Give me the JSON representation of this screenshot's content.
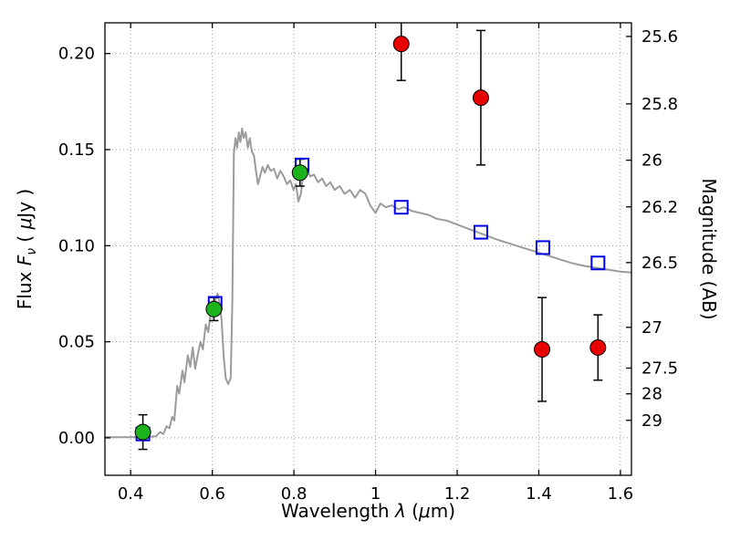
{
  "chart_data": {
    "type": "line",
    "title": "",
    "xlabel": "Wavelength  λ (μm)",
    "xlabel_parts": [
      {
        "t": "Wavelength  "
      },
      {
        "t": "λ",
        "i": true
      },
      {
        "t": " ("
      },
      {
        "t": "μ",
        "i": true
      },
      {
        "t": "m)"
      }
    ],
    "ylabel_left": "Flux  Fν ( μJy )",
    "ylabel_left_parts": [
      {
        "t": "Flux  "
      },
      {
        "t": "F",
        "i": true
      },
      {
        "t": "ν",
        "i": true,
        "sub": true
      },
      {
        "t": " ( "
      },
      {
        "t": "μ",
        "i": true
      },
      {
        "t": "Jy )"
      }
    ],
    "ylabel_right": "Magnitude (AB)",
    "xlim": [
      0.337,
      1.627
    ],
    "ylim": [
      -0.0195,
      0.216
    ],
    "grid": true,
    "x_ticks": [
      {
        "v": 0.4,
        "label": "0.4"
      },
      {
        "v": 0.6,
        "label": "0.6"
      },
      {
        "v": 0.8,
        "label": "0.8"
      },
      {
        "v": 1.0,
        "label": "1"
      },
      {
        "v": 1.2,
        "label": "1.2"
      },
      {
        "v": 1.4,
        "label": "1.4"
      },
      {
        "v": 1.6,
        "label": "1.6"
      }
    ],
    "y_ticks_left": [
      {
        "v": 0.0,
        "label": "0.00"
      },
      {
        "v": 0.05,
        "label": "0.05"
      },
      {
        "v": 0.1,
        "label": "0.10"
      },
      {
        "v": 0.15,
        "label": "0.15"
      },
      {
        "v": 0.2,
        "label": "0.20"
      }
    ],
    "y_ticks_right": [
      {
        "flux": 0.2089,
        "label": "25.6"
      },
      {
        "flux": 0.1738,
        "label": "25.8"
      },
      {
        "flux": 0.1445,
        "label": "26"
      },
      {
        "flux": 0.1202,
        "label": "26.2"
      },
      {
        "flux": 0.0912,
        "label": "26.5"
      },
      {
        "flux": 0.0575,
        "label": "27"
      },
      {
        "flux": 0.0363,
        "label": "27.5"
      },
      {
        "flux": 0.0229,
        "label": "28"
      },
      {
        "flux": 0.0091,
        "label": "29"
      }
    ],
    "colors": {
      "spectrum": "#9b9b9b",
      "model_square": "#0000e6",
      "observed_optical": "#1cb21c",
      "observed_ir": "#e60000",
      "errorbar": "#000000",
      "grid": "#999999",
      "frame": "#000000"
    },
    "series": [
      {
        "name": "model-spectrum",
        "kind": "line",
        "color_key": "spectrum",
        "points": [
          [
            0.337,
            0.0003
          ],
          [
            0.4,
            0.0003
          ],
          [
            0.44,
            0.0005
          ],
          [
            0.462,
            0.0008
          ],
          [
            0.472,
            0.003
          ],
          [
            0.48,
            0.002
          ],
          [
            0.488,
            0.006
          ],
          [
            0.495,
            0.005
          ],
          [
            0.502,
            0.011
          ],
          [
            0.507,
            0.009
          ],
          [
            0.514,
            0.027
          ],
          [
            0.519,
            0.023
          ],
          [
            0.527,
            0.035
          ],
          [
            0.532,
            0.029
          ],
          [
            0.54,
            0.043
          ],
          [
            0.546,
            0.037
          ],
          [
            0.552,
            0.047
          ],
          [
            0.558,
            0.036
          ],
          [
            0.565,
            0.044
          ],
          [
            0.571,
            0.05
          ],
          [
            0.577,
            0.046
          ],
          [
            0.584,
            0.059
          ],
          [
            0.59,
            0.055
          ],
          [
            0.597,
            0.067
          ],
          [
            0.602,
            0.063
          ],
          [
            0.608,
            0.072
          ],
          [
            0.613,
            0.075
          ],
          [
            0.618,
            0.07
          ],
          [
            0.623,
            0.061
          ],
          [
            0.628,
            0.042
          ],
          [
            0.633,
            0.031
          ],
          [
            0.639,
            0.028
          ],
          [
            0.645,
            0.031
          ],
          [
            0.649,
            0.07
          ],
          [
            0.653,
            0.148
          ],
          [
            0.657,
            0.156
          ],
          [
            0.661,
            0.151
          ],
          [
            0.665,
            0.159
          ],
          [
            0.669,
            0.154
          ],
          [
            0.673,
            0.161
          ],
          [
            0.677,
            0.156
          ],
          [
            0.682,
            0.159
          ],
          [
            0.687,
            0.151
          ],
          [
            0.692,
            0.156
          ],
          [
            0.697,
            0.149
          ],
          [
            0.702,
            0.147
          ],
          [
            0.707,
            0.139
          ],
          [
            0.712,
            0.132
          ],
          [
            0.717,
            0.136
          ],
          [
            0.723,
            0.141
          ],
          [
            0.729,
            0.138
          ],
          [
            0.736,
            0.142
          ],
          [
            0.743,
            0.139
          ],
          [
            0.751,
            0.14
          ],
          [
            0.759,
            0.135
          ],
          [
            0.767,
            0.139
          ],
          [
            0.775,
            0.136
          ],
          [
            0.783,
            0.132
          ],
          [
            0.791,
            0.134
          ],
          [
            0.799,
            0.129
          ],
          [
            0.805,
            0.132
          ],
          [
            0.811,
            0.123
          ],
          [
            0.817,
            0.127
          ],
          [
            0.824,
            0.139
          ],
          [
            0.832,
            0.14
          ],
          [
            0.84,
            0.136
          ],
          [
            0.849,
            0.137
          ],
          [
            0.859,
            0.133
          ],
          [
            0.869,
            0.135
          ],
          [
            0.879,
            0.131
          ],
          [
            0.889,
            0.133
          ],
          [
            0.9,
            0.129
          ],
          [
            0.912,
            0.131
          ],
          [
            0.924,
            0.127
          ],
          [
            0.937,
            0.129
          ],
          [
            0.95,
            0.125
          ],
          [
            0.962,
            0.129
          ],
          [
            0.975,
            0.127
          ],
          [
            0.987,
            0.121
          ],
          [
            1.0,
            0.117
          ],
          [
            1.012,
            0.122
          ],
          [
            1.025,
            0.12
          ],
          [
            1.04,
            0.121
          ],
          [
            1.055,
            0.119
          ],
          [
            1.07,
            0.12
          ],
          [
            1.09,
            0.118
          ],
          [
            1.11,
            0.117
          ],
          [
            1.13,
            0.116
          ],
          [
            1.15,
            0.114
          ],
          [
            1.175,
            0.113
          ],
          [
            1.2,
            0.111
          ],
          [
            1.225,
            0.109
          ],
          [
            1.25,
            0.107
          ],
          [
            1.275,
            0.105
          ],
          [
            1.3,
            0.103
          ],
          [
            1.33,
            0.101
          ],
          [
            1.36,
            0.099
          ],
          [
            1.39,
            0.097
          ],
          [
            1.42,
            0.095
          ],
          [
            1.45,
            0.093
          ],
          [
            1.48,
            0.091
          ],
          [
            1.51,
            0.0895
          ],
          [
            1.54,
            0.0885
          ],
          [
            1.57,
            0.0875
          ],
          [
            1.6,
            0.0865
          ],
          [
            1.627,
            0.086
          ]
        ]
      },
      {
        "name": "model-photometry",
        "kind": "open-square",
        "color_key": "model_square",
        "points": [
          [
            0.43,
            0.002
          ],
          [
            0.607,
            0.07
          ],
          [
            0.82,
            0.142
          ],
          [
            1.063,
            0.12
          ],
          [
            1.258,
            0.107
          ],
          [
            1.41,
            0.099
          ],
          [
            1.545,
            0.091
          ]
        ]
      },
      {
        "name": "observed-optical",
        "kind": "filled-circle",
        "color_key": "observed_optical",
        "points": [
          [
            0.43,
            0.003,
            0.009
          ],
          [
            0.604,
            0.067,
            0.006
          ],
          [
            0.815,
            0.138,
            0.007
          ]
        ]
      },
      {
        "name": "observed-infrared",
        "kind": "filled-circle",
        "color_key": "observed_ir",
        "points": [
          [
            1.063,
            0.205,
            0.019
          ],
          [
            1.258,
            0.177,
            0.035
          ],
          [
            1.408,
            0.046,
            0.027
          ],
          [
            1.545,
            0.047,
            0.017
          ]
        ]
      }
    ]
  }
}
